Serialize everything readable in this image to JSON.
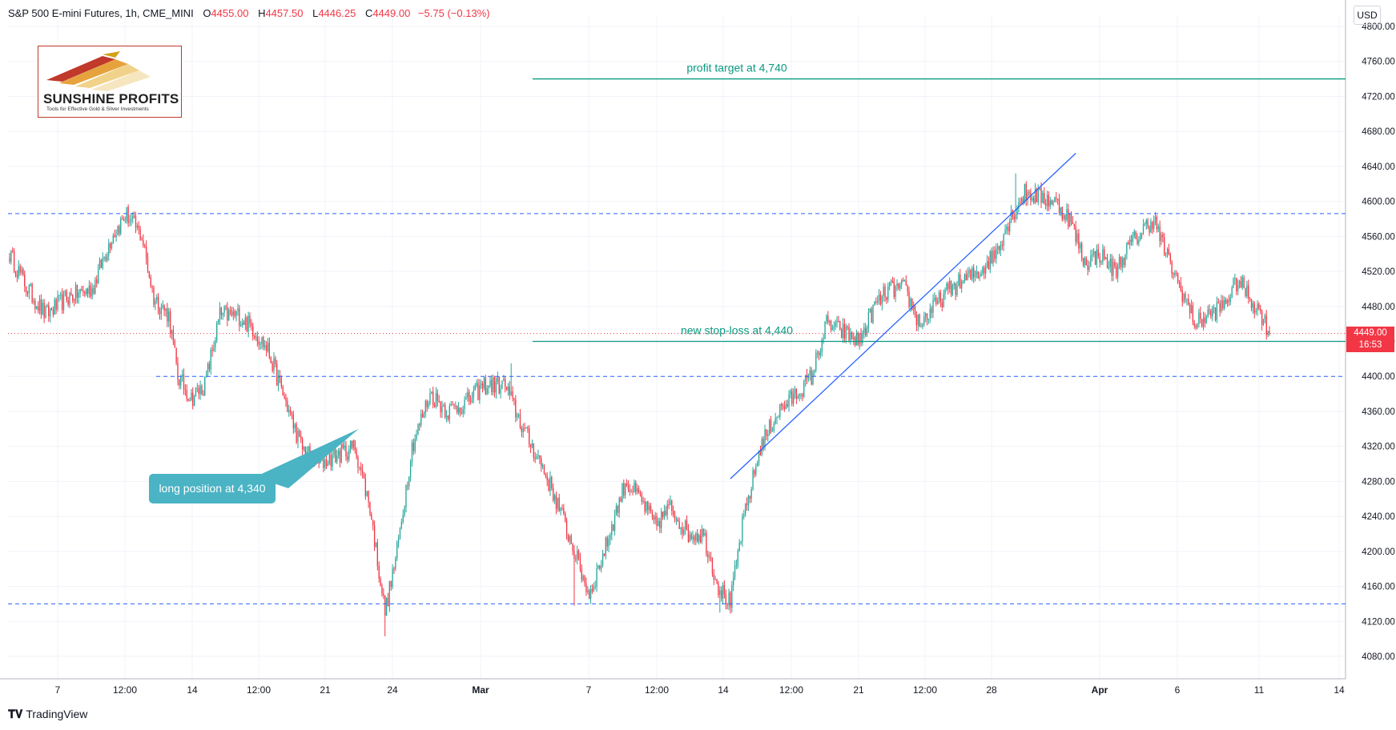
{
  "header": {
    "symbol": "S&P 500 E-mini Futures, 1h, CME_MINI",
    "open_label": "O",
    "open": "4455.00",
    "high_label": "H",
    "high": "4457.50",
    "low_label": "L",
    "low": "4446.25",
    "close_label": "C",
    "close": "4449.00",
    "change": "−5.75 (−0.13%)"
  },
  "currency": "USD",
  "logo": {
    "name": "SUNSHINE PROFITS",
    "tagline": "Tools for Effective Gold & Silver Investments"
  },
  "last_price": {
    "value": "4449.00",
    "countdown": "16:53"
  },
  "footer": {
    "brand": "TradingView",
    "icon": "tradingview-logo-icon"
  },
  "colors": {
    "up": "#26a69a",
    "down": "#f23645",
    "annotation": "#089981",
    "support": "#2962ff",
    "trendline": "#2962ff",
    "callout": "#4ab3c4"
  },
  "chart_data": {
    "type": "candlestick",
    "timeframe": "1h",
    "ylim": [
      4060,
      4820
    ],
    "y_ticks": [
      "4800.00",
      "4760.00",
      "4720.00",
      "4680.00",
      "4640.00",
      "4600.00",
      "4560.00",
      "4520.00",
      "4480.00",
      "4440.00",
      "4400.00",
      "4360.00",
      "4320.00",
      "4280.00",
      "4240.00",
      "4200.00",
      "4160.00",
      "4120.00",
      "4080.00"
    ],
    "x_ticks": [
      "7",
      "12:00",
      "14",
      "12:00",
      "21",
      "24",
      "Mar",
      "7",
      "12:00",
      "14",
      "12:00",
      "21",
      "12:00",
      "28",
      "Apr",
      "6",
      "11",
      "14"
    ],
    "bold_x_ticks": [
      "Mar",
      "Apr"
    ],
    "anchors": [
      {
        "i": 0,
        "p": 4540
      },
      {
        "i": 12,
        "p": 4500
      },
      {
        "i": 24,
        "p": 4470
      },
      {
        "i": 38,
        "p": 4490
      },
      {
        "i": 55,
        "p": 4500
      },
      {
        "i": 68,
        "p": 4560
      },
      {
        "i": 78,
        "p": 4585
      },
      {
        "i": 88,
        "p": 4560
      },
      {
        "i": 96,
        "p": 4490
      },
      {
        "i": 106,
        "p": 4470
      },
      {
        "i": 112,
        "p": 4400
      },
      {
        "i": 121,
        "p": 4375
      },
      {
        "i": 130,
        "p": 4390
      },
      {
        "i": 140,
        "p": 4470
      },
      {
        "i": 152,
        "p": 4470
      },
      {
        "i": 162,
        "p": 4455
      },
      {
        "i": 172,
        "p": 4430
      },
      {
        "i": 182,
        "p": 4380
      },
      {
        "i": 194,
        "p": 4320
      },
      {
        "i": 206,
        "p": 4300
      },
      {
        "i": 218,
        "p": 4310
      },
      {
        "i": 230,
        "p": 4320
      },
      {
        "i": 240,
        "p": 4250
      },
      {
        "i": 250,
        "p": 4130
      },
      {
        "i": 258,
        "p": 4200
      },
      {
        "i": 268,
        "p": 4320
      },
      {
        "i": 280,
        "p": 4380
      },
      {
        "i": 292,
        "p": 4360
      },
      {
        "i": 304,
        "p": 4370
      },
      {
        "i": 316,
        "p": 4390
      },
      {
        "i": 330,
        "p": 4390
      },
      {
        "i": 342,
        "p": 4340
      },
      {
        "i": 354,
        "p": 4300
      },
      {
        "i": 366,
        "p": 4250
      },
      {
        "i": 376,
        "p": 4200
      },
      {
        "i": 386,
        "p": 4150
      },
      {
        "i": 396,
        "p": 4200
      },
      {
        "i": 410,
        "p": 4280
      },
      {
        "i": 420,
        "p": 4260
      },
      {
        "i": 430,
        "p": 4230
      },
      {
        "i": 440,
        "p": 4250
      },
      {
        "i": 452,
        "p": 4220
      },
      {
        "i": 462,
        "p": 4220
      },
      {
        "i": 472,
        "p": 4160
      },
      {
        "i": 480,
        "p": 4140
      },
      {
        "i": 488,
        "p": 4230
      },
      {
        "i": 500,
        "p": 4320
      },
      {
        "i": 512,
        "p": 4360
      },
      {
        "i": 524,
        "p": 4380
      },
      {
        "i": 534,
        "p": 4400
      },
      {
        "i": 544,
        "p": 4460
      },
      {
        "i": 556,
        "p": 4450
      },
      {
        "i": 566,
        "p": 4440
      },
      {
        "i": 576,
        "p": 4480
      },
      {
        "i": 586,
        "p": 4500
      },
      {
        "i": 596,
        "p": 4500
      },
      {
        "i": 606,
        "p": 4460
      },
      {
        "i": 616,
        "p": 4480
      },
      {
        "i": 626,
        "p": 4500
      },
      {
        "i": 636,
        "p": 4510
      },
      {
        "i": 646,
        "p": 4520
      },
      {
        "i": 656,
        "p": 4540
      },
      {
        "i": 666,
        "p": 4580
      },
      {
        "i": 676,
        "p": 4610
      },
      {
        "i": 686,
        "p": 4605
      },
      {
        "i": 696,
        "p": 4600
      },
      {
        "i": 706,
        "p": 4580
      },
      {
        "i": 716,
        "p": 4530
      },
      {
        "i": 726,
        "p": 4540
      },
      {
        "i": 736,
        "p": 4520
      },
      {
        "i": 746,
        "p": 4550
      },
      {
        "i": 756,
        "p": 4570
      },
      {
        "i": 762,
        "p": 4580
      },
      {
        "i": 770,
        "p": 4540
      },
      {
        "i": 780,
        "p": 4500
      },
      {
        "i": 790,
        "p": 4460
      },
      {
        "i": 798,
        "p": 4470
      },
      {
        "i": 808,
        "p": 4480
      },
      {
        "i": 818,
        "p": 4510
      },
      {
        "i": 826,
        "p": 4490
      },
      {
        "i": 834,
        "p": 4470
      },
      {
        "i": 839,
        "p": 4449
      }
    ],
    "extremes": [
      {
        "i": 78,
        "p": 4588,
        "kind": "high"
      },
      {
        "i": 250,
        "p": 4103,
        "kind": "low"
      },
      {
        "i": 376,
        "p": 4138,
        "kind": "low"
      },
      {
        "i": 473,
        "p": 4130,
        "kind": "low"
      },
      {
        "i": 670,
        "p": 4632,
        "kind": "high"
      },
      {
        "i": 334,
        "p": 4415,
        "kind": "high"
      }
    ],
    "horizontal_levels": [
      {
        "price": 4586,
        "style": "dashed",
        "label": ""
      },
      {
        "price": 4400,
        "style": "dashed",
        "label": ""
      },
      {
        "price": 4140,
        "style": "dashed",
        "label": ""
      }
    ],
    "annotation_lines": [
      {
        "price": 4740,
        "label": "profit target at 4,740"
      },
      {
        "price": 4440,
        "label": "new stop-loss at 4,440"
      }
    ],
    "trendline": {
      "from": {
        "i": 480,
        "p": 4283
      },
      "to": {
        "i": 710,
        "p": 4655
      }
    },
    "callout": {
      "label": "long position at 4,340",
      "entry_price": 4340
    }
  }
}
